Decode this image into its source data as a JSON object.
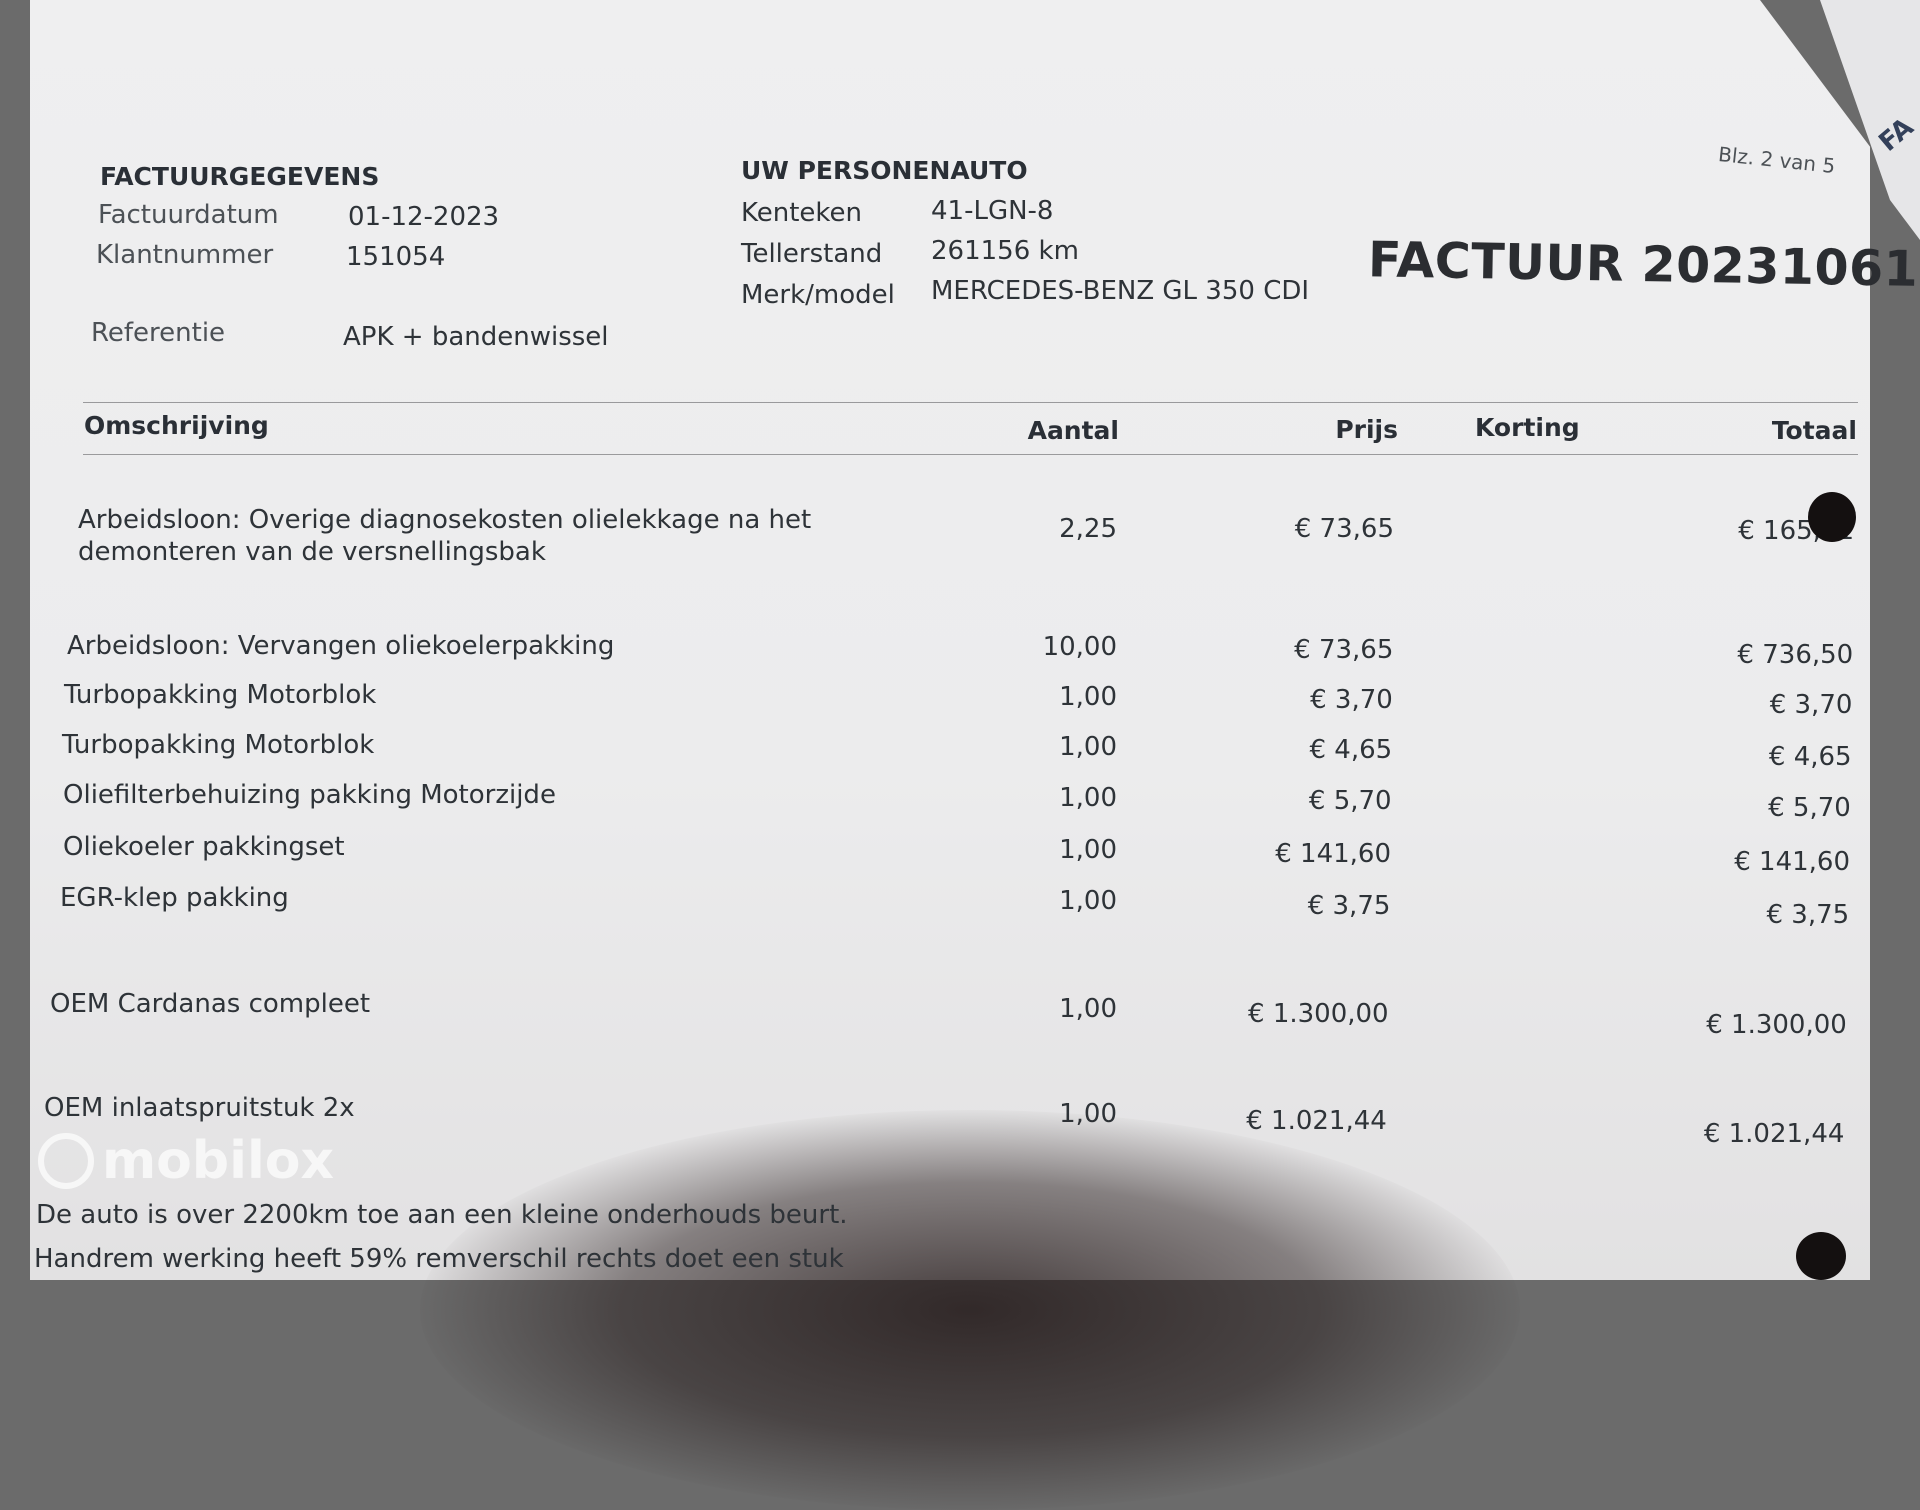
{
  "page_indicator": "Blz. 2 van 5",
  "next_sheet_text": "FA",
  "invoice_title": "FACTUUR 20231061",
  "invoice_details": {
    "heading": "FACTUURGEGEVENS",
    "date_label": "Factuurdatum",
    "date_value": "01-12-2023",
    "customer_label": "Klantnummer",
    "customer_value": "151054",
    "reference_label": "Referentie",
    "reference_value": "APK + bandenwissel"
  },
  "vehicle": {
    "heading": "UW PERSONENAUTO",
    "plate_label": "Kenteken",
    "plate_value": "41-LGN-8",
    "odometer_label": "Tellerstand",
    "odometer_value": "261156 km",
    "model_label": "Merk/model",
    "model_value": "MERCEDES-BENZ GL 350 CDI"
  },
  "table": {
    "headers": {
      "description": "Omschrijving",
      "quantity": "Aantal",
      "price": "Prijs",
      "discount": "Korting",
      "total": "Totaal"
    },
    "rows": [
      {
        "description": "Arbeidsloon: Overige diagnosekosten olielekkage na het\ndemonteren van de versnellingsbak",
        "quantity": "2,25",
        "price": "€ 73,65",
        "discount": "",
        "total": "€ 165,71"
      },
      {
        "description": "Arbeidsloon: Vervangen oliekoelerpakking",
        "quantity": "10,00",
        "price": "€ 73,65",
        "discount": "",
        "total": "€ 736,50"
      },
      {
        "description": "Turbopakking Motorblok",
        "quantity": "1,00",
        "price": "€ 3,70",
        "discount": "",
        "total": "€ 3,70"
      },
      {
        "description": "Turbopakking Motorblok",
        "quantity": "1,00",
        "price": "€ 4,65",
        "discount": "",
        "total": "€ 4,65"
      },
      {
        "description": "Oliefilterbehuizing pakking Motorzijde",
        "quantity": "1,00",
        "price": "€ 5,70",
        "discount": "",
        "total": "€ 5,70"
      },
      {
        "description": "Oliekoeler pakkingset",
        "quantity": "1,00",
        "price": "€ 141,60",
        "discount": "",
        "total": "€ 141,60"
      },
      {
        "description": "EGR-klep pakking",
        "quantity": "1,00",
        "price": "€ 3,75",
        "discount": "",
        "total": "€ 3,75"
      },
      {
        "description": "OEM Cardanas compleet",
        "quantity": "1,00",
        "price": "€ 1.300,00",
        "discount": "",
        "total": "€ 1.300,00"
      },
      {
        "description": "OEM inlaatspruitstuk 2x",
        "quantity": "1,00",
        "price": "€ 1.021,44",
        "discount": "",
        "total": "€ 1.021,44"
      }
    ]
  },
  "notes": [
    "De auto is over 2200km toe aan een kleine onderhouds beurt.",
    "Handrem werking heeft 59% remverschil rechts doet een stuk"
  ],
  "watermark": "mobilox"
}
